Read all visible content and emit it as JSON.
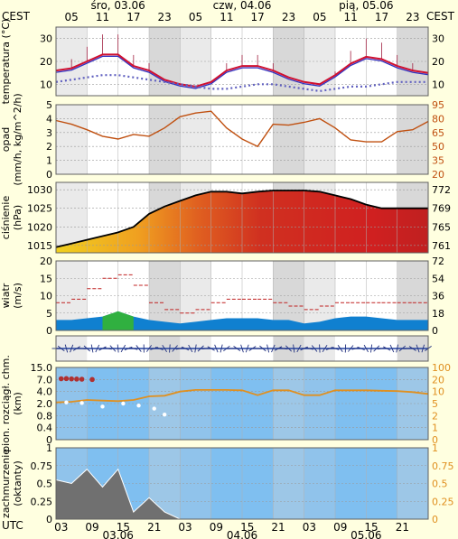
{
  "header": {
    "tz_left": "CEST",
    "tz_right": "CEST",
    "tz_bottom": "UTC",
    "days_top": [
      "śro, 03.06",
      "czw, 04.06",
      "pią, 05.06"
    ],
    "days_bottom": [
      "03.06",
      "04.06",
      "05.06"
    ],
    "hours_top": [
      "05",
      "11",
      "17",
      "23",
      "05",
      "11",
      "17",
      "23",
      "05",
      "11",
      "17",
      "23"
    ],
    "hours_bottom": [
      "03",
      "09",
      "15",
      "21",
      "03",
      "09",
      "15",
      "21",
      "03",
      "09",
      "15",
      "21"
    ]
  },
  "colors": {
    "background": "#ffffe0",
    "plot_bg": "#ffffff",
    "night_band": "#d8d8d8",
    "temperature": "#d01030",
    "dew_point": "#6060c0",
    "humidity": "#c05010",
    "pressure_line": "#000000",
    "wind_avg": "#1080d0",
    "wind_gust": "#c02020",
    "sky": "#7fbff0",
    "cloud_level": "#e09020"
  },
  "chart_data": [
    {
      "id": "temperature",
      "type": "line",
      "ylabel": "temperatura (°C)",
      "ylim": [
        5,
        35
      ],
      "yticks": [
        10,
        20,
        30
      ],
      "x_hours": [
        0,
        3,
        6,
        9,
        12,
        15,
        18,
        21,
        24,
        27,
        30,
        33,
        36,
        39,
        42,
        45,
        48,
        51,
        54,
        57,
        60,
        63,
        66,
        69,
        72
      ],
      "series": [
        {
          "role": "temperature",
          "values": [
            16,
            17,
            20,
            23,
            23,
            18,
            16,
            12,
            10,
            9,
            11,
            16,
            18,
            18,
            16,
            13,
            11,
            10,
            14,
            19,
            22,
            21,
            18,
            16,
            15
          ]
        },
        {
          "role": "dew point",
          "values": [
            11,
            12,
            13,
            14,
            14,
            13,
            12,
            11,
            10,
            9,
            8,
            8,
            9,
            10,
            10,
            9,
            8,
            7,
            8,
            9,
            9,
            10,
            11,
            11,
            11
          ]
        }
      ]
    },
    {
      "id": "humidity",
      "type": "line",
      "ylabel": "opad (mm/h, kg/m^2/h)",
      "ylim": [
        0,
        5
      ],
      "yticks": [
        0,
        1,
        2,
        3,
        4,
        5
      ],
      "y2lim": [
        20,
        95
      ],
      "y2ticks": [
        20,
        35,
        50,
        65,
        80,
        95
      ],
      "x_hours": [
        0,
        3,
        6,
        9,
        12,
        15,
        18,
        21,
        24,
        27,
        30,
        33,
        36,
        39,
        42,
        45,
        48,
        51,
        54,
        57,
        60,
        63,
        66,
        69,
        72
      ],
      "series": [
        {
          "role": "relative humidity",
          "values": [
            78,
            74,
            68,
            61,
            58,
            63,
            61,
            70,
            82,
            86,
            88,
            70,
            58,
            50,
            74,
            73,
            76,
            80,
            70,
            57,
            55,
            55,
            66,
            68,
            77
          ]
        }
      ]
    },
    {
      "id": "pressure",
      "type": "area",
      "ylabel": "ciśnienie (hPa)",
      "ylim": [
        1013,
        1032
      ],
      "yticks": [
        1015,
        1020,
        1025,
        1030
      ],
      "y2ticks": [
        761,
        765,
        769,
        772
      ],
      "x_hours": [
        0,
        3,
        6,
        9,
        12,
        15,
        18,
        21,
        24,
        27,
        30,
        33,
        36,
        39,
        42,
        45,
        48,
        51,
        54,
        57,
        60,
        63,
        66,
        69,
        72
      ],
      "values": [
        1014.5,
        1015.5,
        1016.5,
        1017.5,
        1018.5,
        1020,
        1023.5,
        1025.5,
        1027,
        1028.5,
        1029.5,
        1029.5,
        1029,
        1029.5,
        1029.8,
        1029.8,
        1029.8,
        1029.5,
        1028.5,
        1027.5,
        1026,
        1025,
        1025,
        1025,
        1025
      ]
    },
    {
      "id": "wind",
      "type": "line",
      "ylabel": "wiatr (m/s)",
      "ylim": [
        0,
        20
      ],
      "yticks": [
        0,
        5,
        10,
        15,
        20
      ],
      "y2ticks": [
        0,
        18,
        36,
        54,
        72
      ],
      "x_hours": [
        0,
        3,
        6,
        9,
        12,
        15,
        18,
        21,
        24,
        27,
        30,
        33,
        36,
        39,
        42,
        45,
        48,
        51,
        54,
        57,
        60,
        63,
        66,
        69,
        72
      ],
      "series": [
        {
          "role": "average speed",
          "values": [
            3,
            3,
            3.5,
            4,
            5.5,
            4,
            3,
            2.5,
            2,
            2.5,
            3,
            3.5,
            3.5,
            3.5,
            3,
            3,
            2,
            2.5,
            3.5,
            4,
            4,
            3.5,
            3,
            3,
            3
          ]
        },
        {
          "role": "gusts",
          "values": [
            8,
            9,
            12,
            15,
            16,
            13,
            8,
            6,
            5,
            6,
            8,
            9,
            9,
            9,
            8,
            7,
            6,
            7,
            8,
            8,
            8,
            8,
            8,
            8,
            8
          ]
        }
      ]
    },
    {
      "id": "visibility",
      "type": "line",
      "ylabel": "pion. rozciągł. chm. (km)",
      "ylim": [
        0,
        15
      ],
      "yticks": [
        0,
        0.4,
        0.8,
        2.0,
        4.0,
        7.0,
        15.0
      ],
      "y2ticks": [
        0,
        1,
        2,
        5,
        10,
        20,
        100
      ],
      "x_hours": [
        0,
        3,
        6,
        9,
        12,
        15,
        18,
        21,
        24,
        27,
        30,
        33,
        36,
        39,
        42,
        45,
        48,
        51,
        54,
        57,
        60,
        63,
        66,
        69,
        72
      ],
      "series": [
        {
          "role": "cloud level",
          "values": [
            2.2,
            2.3,
            2.6,
            2.5,
            2.4,
            2.6,
            3.2,
            3.3,
            4,
            4.4,
            4.4,
            4.4,
            4.3,
            3.4,
            4.3,
            4.3,
            3.4,
            3.4,
            4.3,
            4.3,
            4.3,
            4.2,
            4.1,
            3.9,
            3.6
          ]
        }
      ]
    },
    {
      "id": "cloudiness",
      "type": "area",
      "ylabel": "zachmurzenie (oktanty)",
      "ylim": [
        0,
        1
      ],
      "yticks": [
        0,
        0.25,
        0.5,
        0.75,
        1
      ],
      "y2ticks": [
        0,
        0.25,
        0.5,
        0.75,
        1
      ],
      "x_hours": [
        0,
        3,
        6,
        9,
        12,
        15,
        18,
        21,
        24,
        27,
        30,
        33,
        36,
        39,
        42,
        45,
        48,
        51,
        54,
        57,
        60,
        63,
        66,
        69,
        72
      ],
      "values": [
        0.55,
        0.5,
        0.7,
        0.45,
        0.7,
        0.1,
        0.3,
        0.1,
        0,
        0,
        0,
        0,
        0,
        0,
        0,
        0,
        0,
        0,
        0,
        0,
        0,
        0,
        0,
        0,
        0
      ]
    }
  ]
}
